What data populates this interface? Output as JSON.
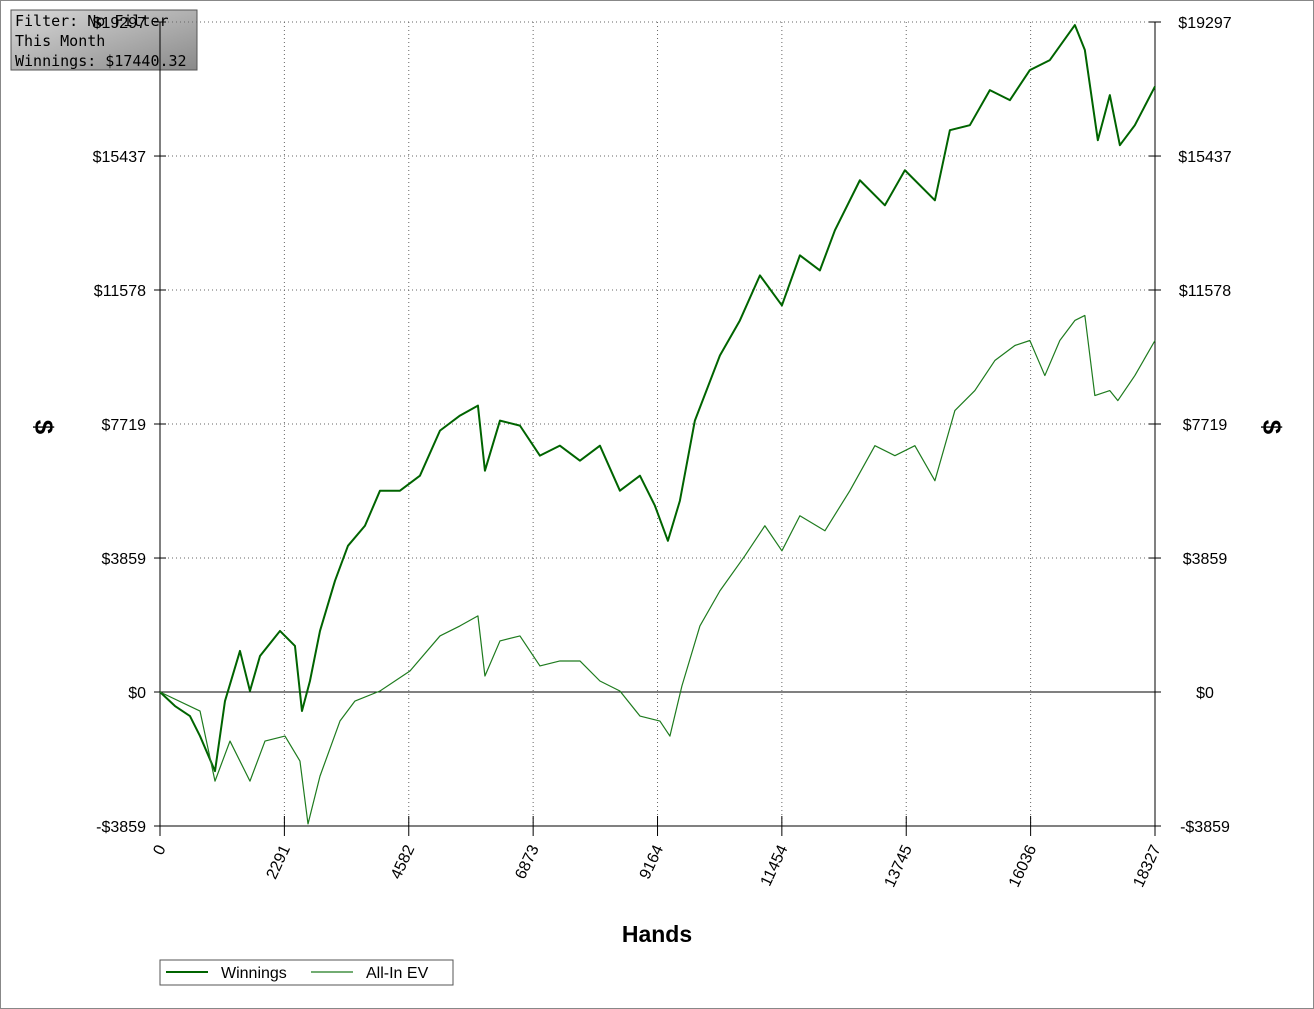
{
  "chart_data": {
    "type": "line",
    "filter_box": [
      "Filter: No Filter",
      "This Month",
      "Winnings: $17440.32"
    ],
    "xlabel": "Hands",
    "ylabel": "$",
    "xlim": [
      0,
      18327
    ],
    "xticks": [
      0,
      2291,
      4582,
      6873,
      9164,
      11454,
      13745,
      16036,
      18327
    ],
    "ylim": [
      -3859,
      19297
    ],
    "yticks": [
      {
        "value": -3859,
        "label": "-$3859"
      },
      {
        "value": 0,
        "label": "$0"
      },
      {
        "value": 3859,
        "label": "$3859"
      },
      {
        "value": 7719,
        "label": "$7719"
      },
      {
        "value": 11578,
        "label": "$11578"
      },
      {
        "value": 15437,
        "label": "$15437"
      },
      {
        "value": 19297,
        "label": "$19297"
      }
    ],
    "grid": true,
    "series": [
      {
        "name": "Winnings",
        "color": "#006400",
        "x": [
          0,
          276,
          552,
          737,
          1013,
          1197,
          1473,
          1657,
          1842,
          2210,
          2486,
          2615,
          2762,
          2947,
          3223,
          3462,
          3775,
          4052,
          4420,
          4788,
          5157,
          5525,
          5856,
          5985,
          6262,
          6630,
          6998,
          7366,
          7735,
          8103,
          8471,
          8840,
          9116,
          9355,
          9576,
          9852,
          10313,
          10681,
          11050,
          11455,
          11786,
          12155,
          12431,
          12891,
          13352,
          13720,
          14273,
          14549,
          14917,
          15285,
          15654,
          16022,
          16390,
          16851,
          17035,
          17274,
          17495,
          17680,
          17956,
          18327
        ],
        "values": [
          0,
          -404,
          -692,
          -1269,
          -2279,
          -260,
          1183,
          29,
          1038,
          1759,
          1327,
          -548,
          317,
          1759,
          3202,
          4211,
          4788,
          5798,
          5798,
          6230,
          7528,
          7961,
          8249,
          6374,
          7817,
          7672,
          6807,
          7095,
          6663,
          7095,
          5798,
          6230,
          5365,
          4355,
          5509,
          7817,
          9691,
          10701,
          11999,
          11133,
          12576,
          12143,
          13297,
          14739,
          14018,
          15027,
          14162,
          16181,
          16325,
          17335,
          17046,
          17912,
          18200,
          19210,
          18489,
          15893,
          17191,
          15749,
          16325,
          17440.32
        ]
      },
      {
        "name": "All-In EV",
        "color": "#1e7b1e",
        "x": [
          0,
          737,
          1013,
          1289,
          1657,
          1934,
          2302,
          2578,
          2726,
          2947,
          3315,
          3591,
          4052,
          4604,
          5157,
          5525,
          5856,
          5985,
          6262,
          6630,
          6998,
          7366,
          7735,
          8103,
          8471,
          8840,
          9208,
          9392,
          9613,
          9945,
          10313,
          10773,
          11141,
          11455,
          11786,
          12247,
          12707,
          13168,
          13536,
          13904,
          14273,
          14641,
          15009,
          15377,
          15746,
          16022,
          16298,
          16574,
          16851,
          17035,
          17219,
          17495,
          17643,
          17956,
          18327
        ],
        "values": [
          0,
          -548,
          -2567,
          -1413,
          -2567,
          -1413,
          -1269,
          -1990,
          -3800,
          -2423,
          -836,
          -260,
          29,
          606,
          1615,
          1904,
          2192,
          461,
          1471,
          1615,
          750,
          894,
          894,
          317,
          29,
          -692,
          -836,
          -1269,
          173,
          1904,
          2913,
          3923,
          4788,
          4067,
          5076,
          4644,
          5798,
          7095,
          6807,
          7095,
          6086,
          8105,
          8682,
          9547,
          9980,
          10124,
          9114,
          10124,
          10701,
          10845,
          8538,
          8682,
          8394,
          9114,
          10124
        ]
      }
    ]
  }
}
